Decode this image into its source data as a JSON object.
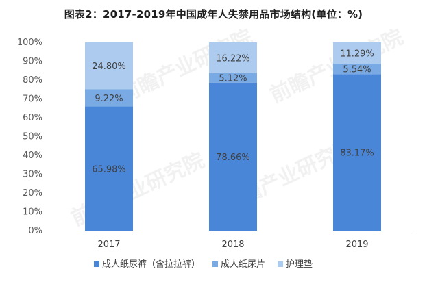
{
  "title": "图表2：2017-2019年中国成年人失禁用品市场结构(单位：%)",
  "colors": {
    "axis": "#d9d9d9",
    "grid": "#d9d9d9"
  },
  "chart_data": {
    "type": "bar",
    "stacked": true,
    "categories": [
      "2017",
      "2018",
      "2019"
    ],
    "y_ticks": [
      "0%",
      "10%",
      "20%",
      "30%",
      "40%",
      "50%",
      "60%",
      "70%",
      "80%",
      "90%",
      "100%"
    ],
    "ylim": [
      0,
      100
    ],
    "legend_position": "bottom",
    "series": [
      {
        "name": "成人纸尿裤（含拉拉裤）",
        "color": "#4a86d8",
        "values": [
          65.98,
          78.66,
          83.17
        ],
        "labels": [
          "65.98%",
          "78.66%",
          "83.17%"
        ]
      },
      {
        "name": "成人纸尿片",
        "color": "#7aaae4",
        "values": [
          9.22,
          5.12,
          5.54
        ],
        "labels": [
          "9.22%",
          "5.12%",
          "5.54%"
        ]
      },
      {
        "name": "护理垫",
        "color": "#adcbee",
        "values": [
          24.8,
          16.22,
          11.29
        ],
        "labels": [
          "24.80%",
          "16.22%",
          "11.29%"
        ]
      }
    ]
  }
}
